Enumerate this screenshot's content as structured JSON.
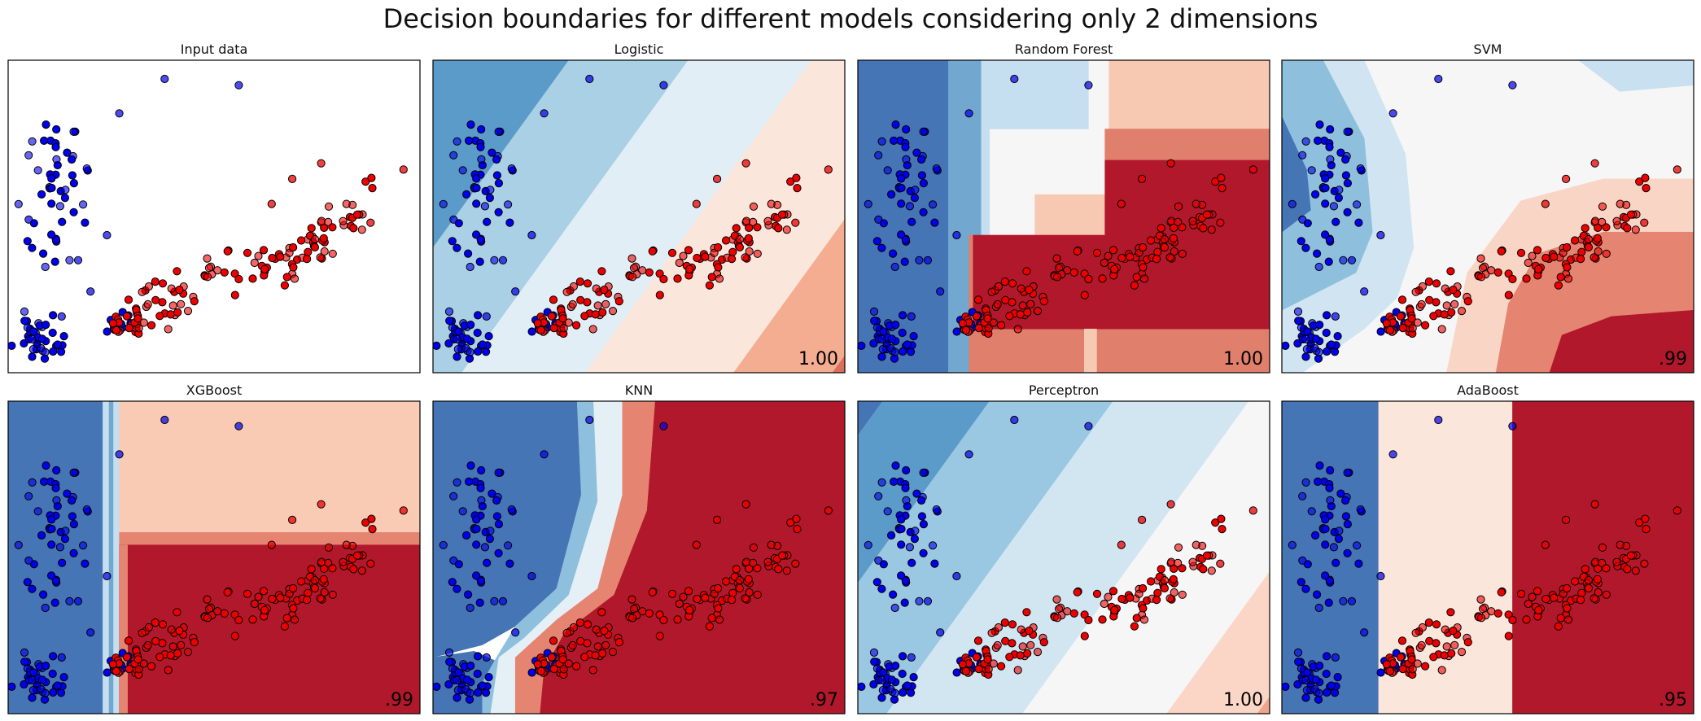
{
  "figure_title": "Decision boundaries for different models considering only 2 dimensions",
  "colors": {
    "class0": "#0000ee",
    "class1": "#ee0000",
    "point_edge": "#000000",
    "map_blue_dark": "#4575b4",
    "map_red_dark": "#b2182b"
  },
  "chart_data": [
    {
      "type": "scatter",
      "title": "Input data",
      "score": "",
      "boundary": "none"
    },
    {
      "type": "scatter",
      "title": "Logistic",
      "score": "1.00",
      "boundary": "logistic"
    },
    {
      "type": "scatter",
      "title": "Random Forest",
      "score": "1.00",
      "boundary": "random-forest"
    },
    {
      "type": "scatter",
      "title": "SVM",
      "score": ".99",
      "boundary": "svm"
    },
    {
      "type": "scatter",
      "title": "XGBoost",
      "score": ".99",
      "boundary": "xgboost"
    },
    {
      "type": "scatter",
      "title": "KNN",
      "score": ".97",
      "boundary": "knn"
    },
    {
      "type": "scatter",
      "title": "Perceptron",
      "score": "1.00",
      "boundary": "perceptron"
    },
    {
      "type": "scatter",
      "title": "AdaBoost",
      "score": ".95",
      "boundary": "adaboost"
    }
  ]
}
